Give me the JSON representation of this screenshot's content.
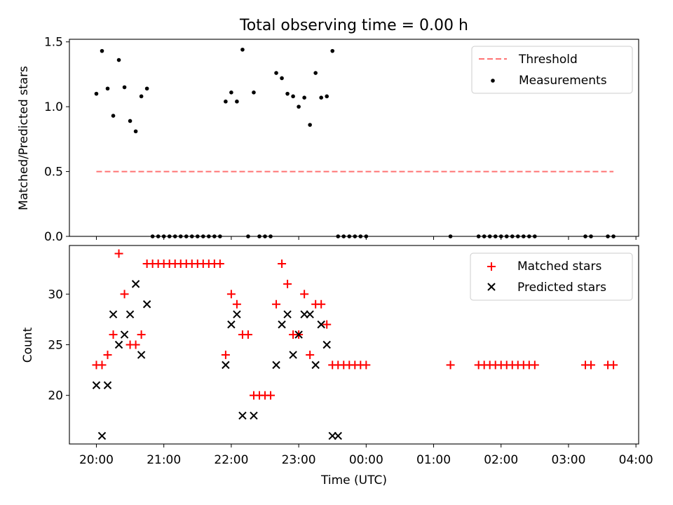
{
  "figure": {
    "title": "Total observing time = 0.00 h"
  },
  "chart_data": [
    {
      "type": "scatter",
      "ylabel": "Matched/Predicted stars",
      "xlabel": "",
      "ylim": [
        0,
        1.52
      ],
      "xlim_hours": [
        19.6,
        28.04
      ],
      "yticks": [
        0.0,
        0.5,
        1.0,
        1.5
      ],
      "ytick_labels": [
        "0.0",
        "0.5",
        "1.0",
        "1.5"
      ],
      "legend_position": "top-right",
      "threshold": {
        "name": "Threshold",
        "y": 0.5,
        "x_range": [
          "20:00",
          "27:40"
        ],
        "color": "#ff7373"
      },
      "series": [
        {
          "name": "Measurements",
          "color": "#000000",
          "x": [
            "20:00",
            "20:05",
            "20:10",
            "20:15",
            "20:20",
            "20:25",
            "20:30",
            "20:35",
            "20:40",
            "20:45",
            "20:50",
            "20:55",
            "21:00",
            "21:05",
            "21:10",
            "21:15",
            "21:20",
            "21:25",
            "21:30",
            "21:35",
            "21:40",
            "21:45",
            "21:50",
            "21:55",
            "22:00",
            "22:05",
            "22:10",
            "22:15",
            "22:20",
            "22:25",
            "22:30",
            "22:35",
            "22:40",
            "22:45",
            "22:50",
            "22:55",
            "23:00",
            "23:05",
            "23:10",
            "23:15",
            "23:20",
            "23:25",
            "23:30",
            "23:35",
            "23:40",
            "23:45",
            "23:50",
            "23:55",
            "24:00",
            "25:15",
            "25:40",
            "25:45",
            "25:50",
            "25:55",
            "26:00",
            "26:05",
            "26:10",
            "26:15",
            "26:20",
            "26:25",
            "26:30",
            "27:15",
            "27:20",
            "27:35",
            "27:40"
          ],
          "y": [
            1.1,
            1.43,
            1.14,
            0.93,
            1.36,
            1.15,
            0.89,
            0.81,
            1.08,
            1.14,
            0,
            0,
            0,
            0,
            0,
            0,
            0,
            0,
            0,
            0,
            0,
            0,
            0,
            1.04,
            1.11,
            1.04,
            1.44,
            0,
            1.11,
            0,
            0,
            0,
            1.26,
            1.22,
            1.1,
            1.08,
            1.0,
            1.07,
            0.86,
            1.26,
            1.07,
            1.08,
            1.43,
            0,
            0,
            0,
            0,
            0,
            0,
            0,
            0,
            0,
            0,
            0,
            0,
            0,
            0,
            0,
            0,
            0,
            0,
            0,
            0,
            0,
            0
          ]
        }
      ]
    },
    {
      "type": "scatter",
      "ylabel": "Count",
      "xlabel": "Time (UTC)",
      "ylim": [
        15.2,
        34.8
      ],
      "xlim_hours": [
        19.6,
        28.04
      ],
      "yticks": [
        20,
        25,
        30
      ],
      "ytick_labels": [
        "20",
        "25",
        "30"
      ],
      "xticks_hours": [
        20,
        21,
        22,
        23,
        24,
        25,
        26,
        27,
        28
      ],
      "xtick_labels": [
        "20:00",
        "21:00",
        "22:00",
        "23:00",
        "00:00",
        "01:00",
        "02:00",
        "03:00",
        "04:00"
      ],
      "legend_position": "top-right",
      "series": [
        {
          "name": "Matched stars",
          "marker": "plus",
          "color": "#ff0000",
          "x": [
            "20:00",
            "20:05",
            "20:10",
            "20:15",
            "20:20",
            "20:25",
            "20:30",
            "20:35",
            "20:40",
            "20:45",
            "20:50",
            "20:55",
            "21:00",
            "21:05",
            "21:10",
            "21:15",
            "21:20",
            "21:25",
            "21:30",
            "21:35",
            "21:40",
            "21:45",
            "21:50",
            "21:55",
            "22:00",
            "22:05",
            "22:10",
            "22:15",
            "22:20",
            "22:25",
            "22:30",
            "22:35",
            "22:40",
            "22:45",
            "22:50",
            "22:55",
            "23:00",
            "23:05",
            "23:10",
            "23:15",
            "23:20",
            "23:25",
            "23:30",
            "23:35",
            "23:40",
            "23:45",
            "23:50",
            "23:55",
            "24:00",
            "25:15",
            "25:40",
            "25:45",
            "25:50",
            "25:55",
            "26:00",
            "26:05",
            "26:10",
            "26:15",
            "26:20",
            "26:25",
            "26:30",
            "27:15",
            "27:20",
            "27:35",
            "27:40"
          ],
          "y": [
            23,
            23,
            24,
            26,
            34,
            30,
            25,
            25,
            26,
            33,
            33,
            33,
            33,
            33,
            33,
            33,
            33,
            33,
            33,
            33,
            33,
            33,
            33,
            24,
            30,
            29,
            26,
            26,
            20,
            20,
            20,
            20,
            29,
            33,
            31,
            26,
            26,
            30,
            24,
            29,
            29,
            27,
            23,
            23,
            23,
            23,
            23,
            23,
            23,
            23,
            23,
            23,
            23,
            23,
            23,
            23,
            23,
            23,
            23,
            23,
            23,
            23,
            23,
            23,
            23
          ]
        },
        {
          "name": "Predicted stars",
          "marker": "x",
          "color": "#000000",
          "x": [
            "20:00",
            "20:05",
            "20:10",
            "20:15",
            "20:20",
            "20:25",
            "20:30",
            "20:35",
            "20:40",
            "20:45",
            "21:55",
            "22:00",
            "22:05",
            "22:10",
            "22:20",
            "22:40",
            "22:45",
            "22:50",
            "22:55",
            "23:00",
            "23:05",
            "23:10",
            "23:15",
            "23:20",
            "23:25",
            "23:30",
            "23:35"
          ],
          "y": [
            21,
            16,
            21,
            28,
            25,
            26,
            28,
            31,
            24,
            29,
            23,
            27,
            28,
            18,
            18,
            23,
            27,
            28,
            24,
            26,
            28,
            28,
            23,
            27,
            25,
            16,
            16
          ]
        }
      ]
    }
  ]
}
